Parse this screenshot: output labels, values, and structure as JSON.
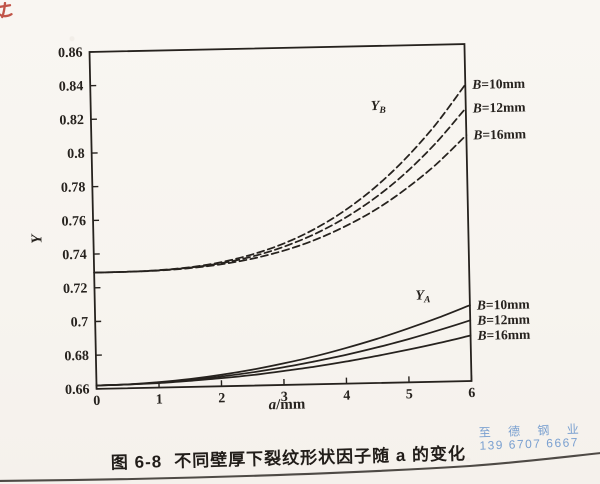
{
  "page": {
    "colors": {
      "paper": "#f8f5f1",
      "ink": "#26221e",
      "watermark": "#7aa0d0",
      "red_mark": "#b8392c"
    }
  },
  "caption": {
    "prefix": "图 6-8",
    "title": "不同壁厚下裂纹形状因子随 a 的变化"
  },
  "watermark": {
    "line1": "至 德 钢 业",
    "line2": "139 6707 6667"
  },
  "chart_data": {
    "type": "line",
    "title": "",
    "xlabel_italic": "a",
    "xlabel_rest": "/mm",
    "ylabel": "Y",
    "xlim": [
      0,
      6
    ],
    "ylim": [
      0.66,
      0.86
    ],
    "grid": false,
    "legend_position": "right-of-plot-at-line-ends",
    "xticks": [
      0,
      1,
      2,
      3,
      4,
      5,
      6
    ],
    "xtick_labels": [
      "0",
      "1",
      "2",
      "3",
      "4",
      "5",
      "6"
    ],
    "yticks": [
      0.86,
      0.84,
      0.82,
      0.8,
      0.78,
      0.76,
      0.74,
      0.72,
      0.7,
      0.68,
      0.66
    ],
    "ytick_labels": [
      "0.86",
      "0.84",
      "0.82",
      "0.8",
      "0.78",
      "0.76",
      "0.74",
      "0.72",
      "0.7",
      "0.68",
      "0.66"
    ],
    "x": [
      0,
      0.5,
      1,
      1.5,
      2,
      2.5,
      3,
      3.5,
      4,
      4.5,
      5,
      5.5,
      6
    ],
    "series": [
      {
        "name": "B=10mm",
        "group": "YB",
        "line_style": "dashed",
        "values": [
          0.729,
          0.7291,
          0.7296,
          0.7309,
          0.7334,
          0.7375,
          0.7433,
          0.7514,
          0.762,
          0.7755,
          0.7921,
          0.8121,
          0.836
        ]
      },
      {
        "name": "B=12mm",
        "group": "YB",
        "line_style": "dashed",
        "values": [
          0.729,
          0.7291,
          0.7295,
          0.7307,
          0.7328,
          0.7363,
          0.7415,
          0.7485,
          0.7577,
          0.7694,
          0.7838,
          0.8013,
          0.822
        ]
      },
      {
        "name": "B=16mm",
        "group": "YB",
        "line_style": "dashed",
        "values": [
          0.729,
          0.7291,
          0.7294,
          0.7304,
          0.7322,
          0.7351,
          0.7393,
          0.7451,
          0.7528,
          0.7624,
          0.7744,
          0.7888,
          0.806
        ]
      },
      {
        "name": "B=10mm",
        "group": "YA",
        "line_style": "solid",
        "values": [
          0.662,
          0.6623,
          0.6632,
          0.6647,
          0.6668,
          0.6695,
          0.6728,
          0.6766,
          0.6811,
          0.6862,
          0.6919,
          0.6981,
          0.705
        ]
      },
      {
        "name": "B=12mm",
        "group": "YA",
        "line_style": "solid",
        "values": [
          0.662,
          0.6622,
          0.6629,
          0.6641,
          0.6658,
          0.6679,
          0.6705,
          0.6736,
          0.6771,
          0.6811,
          0.6856,
          0.6906,
          0.696
        ]
      },
      {
        "name": "B=16mm",
        "group": "YA",
        "line_style": "solid",
        "values": [
          0.662,
          0.6622,
          0.6627,
          0.6636,
          0.6648,
          0.6663,
          0.6683,
          0.6705,
          0.6731,
          0.6761,
          0.6794,
          0.683,
          0.687
        ]
      }
    ],
    "annotations": [
      {
        "main": "Y",
        "sub": "B",
        "a": 4.6,
        "Y": 0.822
      },
      {
        "main": "Y",
        "sub": "A",
        "a": 5.25,
        "Y": 0.709
      }
    ]
  }
}
